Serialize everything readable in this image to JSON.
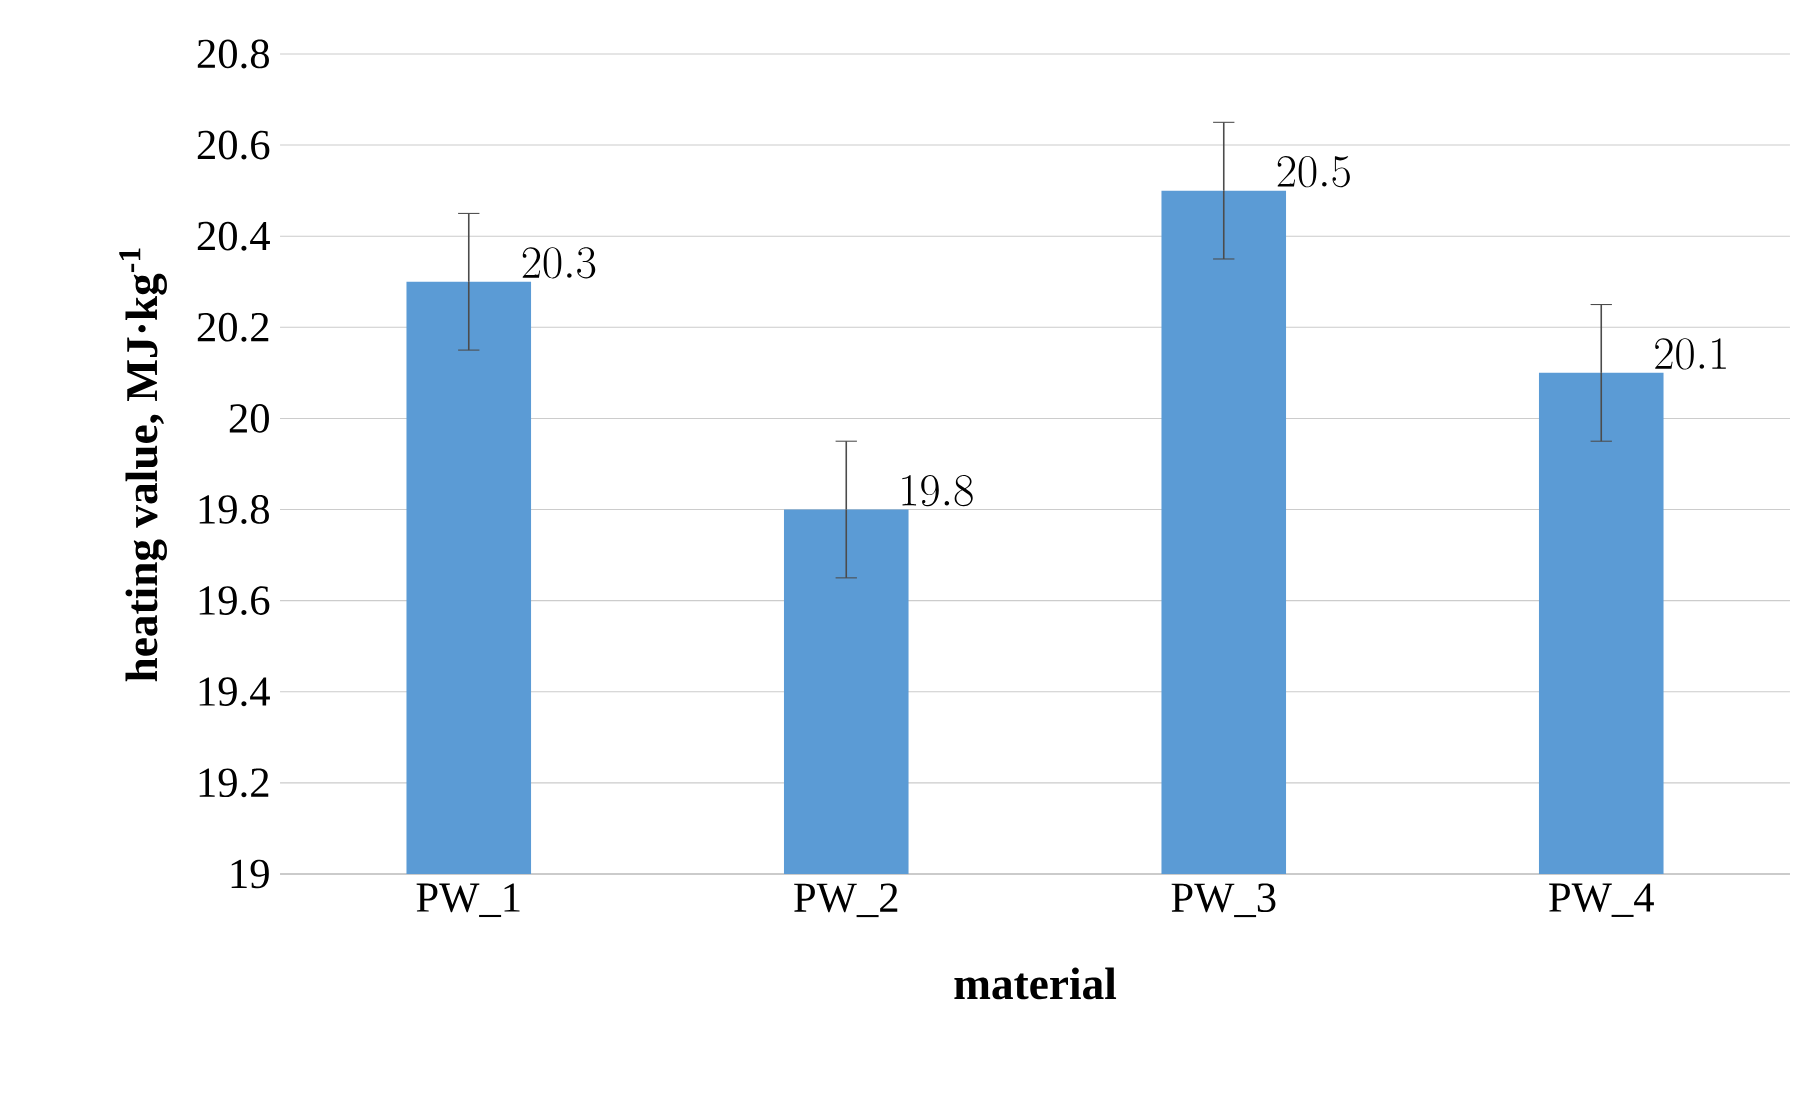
{
  "chart_data": {
    "type": "bar",
    "xlabel": "material",
    "ylabel": "heating value, MJ·kg$^{-1}$",
    "categories": [
      "PW_1",
      "PW_2",
      "PW_3",
      "PW_4"
    ],
    "values": [
      20.3,
      19.8,
      20.5,
      20.1
    ],
    "color": "#5b9bd5",
    "errors": [
      0.15,
      0.15,
      0.15,
      0.15
    ],
    "ylim": [
      19,
      20.8
    ],
    "yticks": [
      19,
      19.2,
      19.4,
      19.6,
      19.8,
      20,
      20.2,
      20.4,
      20.6,
      20.8
    ],
    "grid": "y",
    "data_labels": true
  }
}
